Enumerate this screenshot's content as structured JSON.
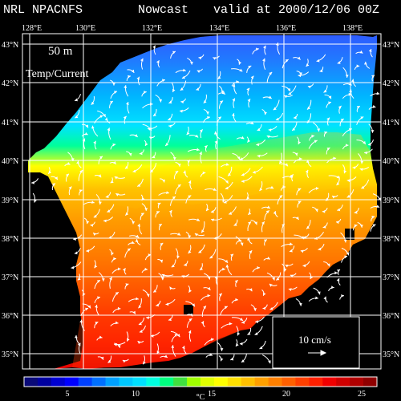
{
  "header": {
    "model": "NRL NPACNFS",
    "product": "Nowcast",
    "valid": "valid at 2000/12/06 00Z"
  },
  "overlay": {
    "depth": "50 m",
    "field": "Temp/Current"
  },
  "axes": {
    "lon_labels": [
      "128°E",
      "130°E",
      "132°E",
      "134°E",
      "136°E",
      "138°E"
    ],
    "lat_labels": [
      "43°N",
      "42°N",
      "41°N",
      "40°N",
      "39°N",
      "38°N",
      "37°N",
      "36°N",
      "35°N"
    ]
  },
  "legend": {
    "scale_label": "10 cm/s",
    "colorbar_ticks": [
      "5",
      "10",
      "15",
      "20",
      "25"
    ],
    "unit": "°C"
  },
  "colors": {
    "background": "#000000",
    "grid": "#ffffff",
    "colorbar": [
      "#0a0a78",
      "#0000a0",
      "#0000d2",
      "#0000ff",
      "#0040ff",
      "#0070ff",
      "#00a0ff",
      "#00c8ff",
      "#00e0ff",
      "#00ffe0",
      "#00ff80",
      "#40e040",
      "#a0ff00",
      "#e0ff00",
      "#ffff00",
      "#ffe000",
      "#ffc000",
      "#ffa000",
      "#ff8000",
      "#ff6000",
      "#ff4000",
      "#ff2000",
      "#f00000",
      "#d00000",
      "#b00000",
      "#900000"
    ]
  }
}
